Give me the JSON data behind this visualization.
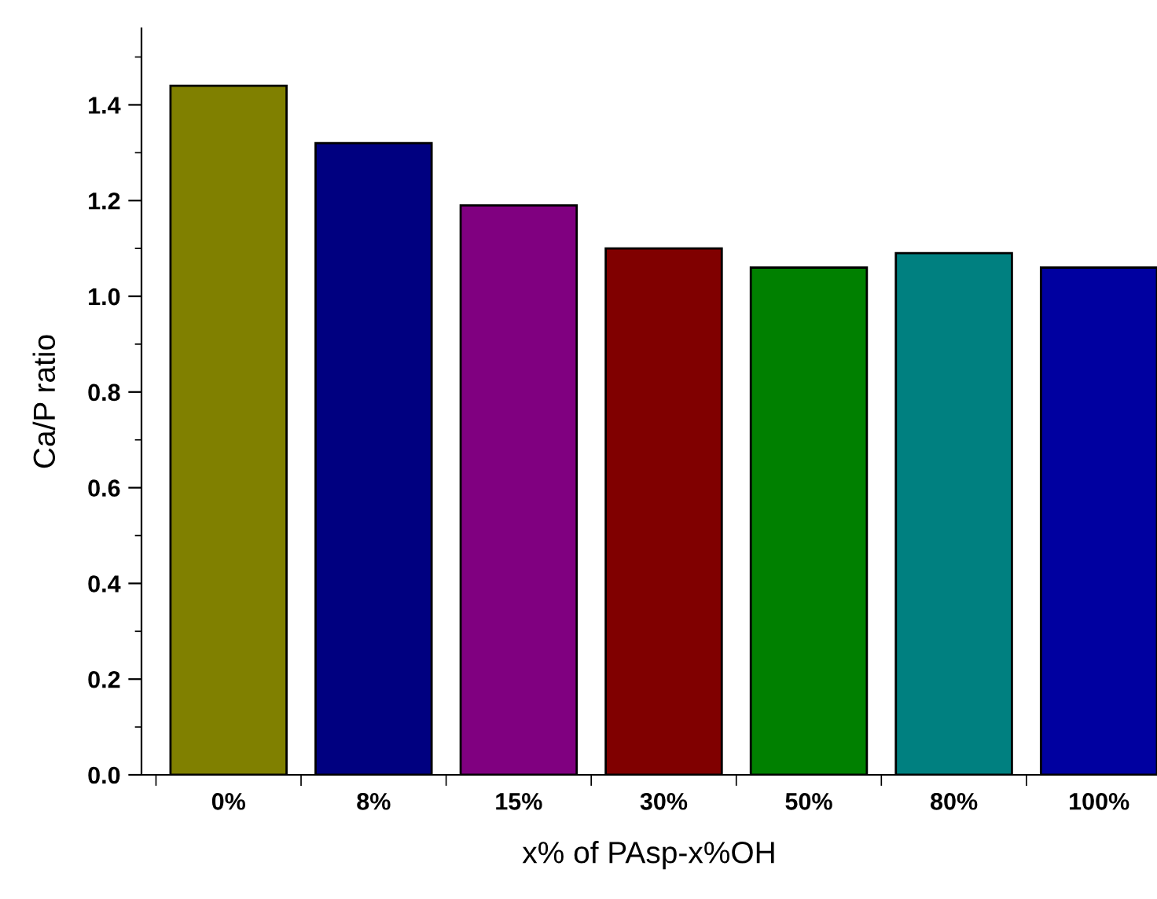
{
  "chart_data": {
    "type": "bar",
    "xlabel": "x% of PAsp-x%OH",
    "ylabel": "Ca/P ratio",
    "categories": [
      "0%",
      "8%",
      "15%",
      "30%",
      "50%",
      "80%",
      "100%"
    ],
    "values": [
      1.44,
      1.32,
      1.19,
      1.1,
      1.06,
      1.09,
      1.06
    ],
    "colors": [
      "#808000",
      "#000080",
      "#800080",
      "#800000",
      "#008000",
      "#008080",
      "#0000a0"
    ],
    "ylim": [
      0,
      1.56
    ],
    "yticks": [
      {
        "value": 0,
        "label": "0.0"
      },
      0.2,
      0.4,
      0.6,
      0.8,
      {
        "value": 1,
        "label": "1.0"
      },
      1.2,
      1.4
    ],
    "grid": false,
    "legend": false
  }
}
